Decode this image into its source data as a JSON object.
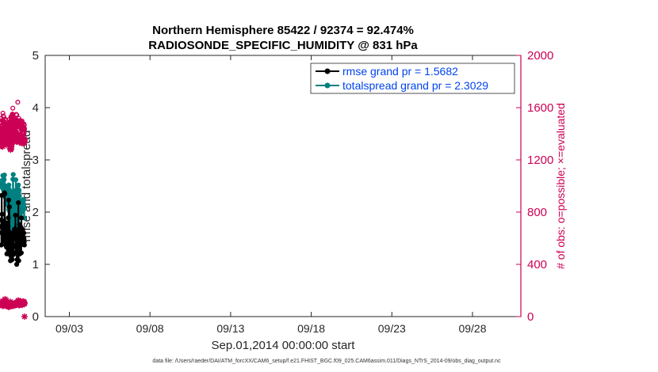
{
  "chart_data": {
    "type": "line",
    "title_line1": "Northern Hemisphere 85422 / 92374 = 92.474%",
    "title_line2": "RADIOSONDE_SPECIFIC_HUMIDITY @ 831 hPa",
    "xlabel": "Sep.01,2014 00:00:00 start",
    "ylabel_left": "rmse and totalspread",
    "ylabel_right": "# of obs: o=possible; ×=evaluated",
    "footnote": "data file: /Users/raeder/DAI/ATM_forcXX/CAM6_setup/f.e21.FHIST_BGC.f09_025.CAM6assim.011/Diags_NTrS_2014-09/obs_diag_output.nc",
    "x_range": [
      1.5,
      31.0
    ],
    "x_ticks": [
      {
        "value": 3,
        "label": "09/03"
      },
      {
        "value": 8,
        "label": "09/08"
      },
      {
        "value": 13,
        "label": "09/13"
      },
      {
        "value": 18,
        "label": "09/18"
      },
      {
        "value": 23,
        "label": "09/23"
      },
      {
        "value": 28,
        "label": "09/28"
      }
    ],
    "y_left_range": [
      0,
      5
    ],
    "y_left_ticks": [
      "0",
      "1",
      "2",
      "3",
      "4",
      "5"
    ],
    "y_right_range": [
      0,
      2000
    ],
    "y_right_ticks": [
      "0",
      "400",
      "800",
      "1200",
      "1600",
      "2000"
    ],
    "colors": {
      "rmse": "#000000",
      "spread": "#008080",
      "obs": "#cc0055",
      "legend_text": "#0044ee"
    },
    "legend": [
      {
        "label": "rmse grand pr = 1.5682"
      },
      {
        "label": "totalspread grand pr = 2.3029"
      }
    ],
    "series": [
      {
        "name": "rmse",
        "axis": "left",
        "values": [
          1.85,
          1.37,
          1.72,
          2.32,
          1.6,
          1.96,
          1.62,
          1.75,
          1.68,
          1.58,
          1.7,
          1.52,
          1.66,
          1.58,
          1.46,
          1.62,
          1.83,
          1.44,
          2.37,
          1.59,
          2.35,
          1.64,
          1.65,
          1.63,
          1.57,
          1.74,
          1.37,
          1.52,
          1.66,
          1.33,
          1.79,
          1.2,
          1.62,
          1.48,
          1.57,
          1.65,
          1.64,
          1.68,
          1.73,
          1.89,
          1.28,
          2.23,
          1.56,
          1.6,
          1.62,
          2.1,
          1.55,
          1.2,
          1.47,
          1.56,
          1.18,
          1.07,
          1.6,
          1.08,
          1.37,
          1.15,
          1.55,
          1.15,
          1.24,
          1.47,
          1.09,
          1.58,
          1.19,
          1.32,
          1.48,
          1.38,
          1.49,
          1.47,
          1.19,
          1.6,
          1.56,
          1.49,
          1.67,
          1.57,
          1.62,
          1.54,
          1.68,
          1.56,
          1.94,
          1.51,
          1.35,
          1.23,
          1.48,
          1.32,
          1.47,
          1.0,
          1.54,
          1.09,
          1.53,
          1.34,
          1.47,
          1.26,
          1.63,
          1.3,
          2.18,
          1.55,
          1.07,
          1.65,
          1.6,
          1.53,
          1.76,
          1.62,
          1.2,
          1.64,
          1.51,
          1.62,
          1.72,
          1.69,
          1.68,
          1.7,
          1.22,
          1.89,
          1.4,
          1.58,
          1.44,
          1.38,
          1.6,
          1.45,
          1.67,
          1.42,
          1.53,
          1.45,
          1.39,
          1.48,
          1.6,
          1.49,
          1.43,
          1.37
        ]
      },
      {
        "name": "totalspread",
        "axis": "left",
        "values": [
          2.58,
          2.55,
          2.6,
          2.53,
          2.48,
          2.56,
          2.6,
          2.47,
          2.52,
          2.7,
          2.44,
          2.55,
          2.62,
          2.5,
          2.64,
          2.4,
          2.62,
          2.46,
          2.71,
          2.51,
          2.35,
          2.3,
          2.43,
          2.28,
          2.38,
          2.32,
          2.18,
          2.37,
          2.2,
          2.35,
          2.19,
          2.39,
          2.16,
          2.33,
          2.22,
          2.38,
          2.29,
          2.2,
          2.35,
          2.12,
          2.46,
          2.05,
          2.52,
          2.08,
          2.43,
          2.02,
          2.3,
          1.92,
          2.37,
          1.78,
          2.28,
          1.65,
          2.3,
          1.59,
          2.21,
          1.7,
          2.35,
          1.62,
          2.32,
          1.75,
          2.18,
          1.66,
          2.2,
          1.76,
          2.63,
          1.85,
          2.72,
          1.8,
          2.4,
          1.77,
          2.36,
          2.03,
          2.31,
          1.78,
          2.26,
          1.72,
          2.41,
          1.63,
          2.35,
          1.58,
          2.62,
          1.61,
          2.33,
          1.55,
          2.25,
          1.62,
          2.15,
          1.75,
          2.21,
          1.58,
          2.46,
          1.64,
          2.3,
          1.92,
          2.52,
          1.7,
          2.38,
          1.95,
          2.42,
          1.77,
          2.31,
          2.02,
          2.22,
          1.94,
          2.09,
          2.01,
          2.15,
          2.06,
          2.2,
          1.99,
          2.22,
          2.12,
          2.18,
          2.1,
          2.18,
          2.15,
          2.12,
          2.17,
          2.04,
          2.24,
          2.1,
          2.15,
          2.16,
          2.05,
          2.23,
          1.89,
          2.1,
          1.89
        ]
      },
      {
        "name": "obs possible",
        "axis": "right",
        "values": [
          1396,
          1457,
          1518,
          1465,
          1400,
          1462,
          1502,
          1443,
          1418,
          1497,
          1459,
          1497,
          1558,
          1442,
          1486,
          1537,
          1420,
          1491,
          1530,
          1456,
          1472,
          1428,
          1492,
          1463,
          1445,
          1487,
          1446,
          1472,
          1512,
          1420,
          1447,
          1428,
          1456,
          1454,
          1503,
          1428,
          1438,
          1460,
          1466,
          1456,
          1459,
          1464,
          1465,
          1429,
          1448,
          1463,
          1478,
          1452,
          1459,
          1440,
          1480,
          1450,
          1475,
          1468,
          1458,
          1456,
          1471,
          1510,
          1490,
          1465,
          1432,
          1455,
          1488,
          1423,
          1457,
          1463,
          1441,
          1413,
          1490,
          1532,
          1520,
          1502,
          1514,
          1508,
          1490,
          1526,
          1532,
          1522,
          1524,
          1551,
          1543,
          1528,
          1596,
          1536,
          1538,
          1492,
          1510,
          1520,
          1505,
          1490,
          1495,
          1485,
          1455,
          1475,
          1435,
          1449,
          1440,
          1436,
          1485,
          1503,
          1428,
          1448,
          1392,
          1484,
          1503,
          1478,
          1548,
          1508,
          1495,
          1460,
          1544,
          1460,
          1452,
          1484,
          1460,
          1468,
          1495,
          1642,
          1466,
          1478,
          1483,
          1471,
          1496,
          1472,
          1438,
          1518,
          1483,
          1463,
          1466,
          1450,
          1478,
          1490,
          1501,
          1473,
          1450,
          1462,
          1488,
          1494,
          1460,
          1484,
          1472,
          1490,
          1442,
          1431,
          1472,
          1450,
          1429,
          1498,
          1487,
          1413,
          1452,
          1446,
          1478,
          1430,
          1406,
          1401,
          1432,
          1447,
          1408,
          1399,
          1440,
          1475,
          1404,
          1466,
          1430,
          1440
        ]
      },
      {
        "name": "obs evaluated",
        "axis": "right",
        "values": [
          1307,
          1336,
          1364,
          1353,
          1306,
          1351,
          1410,
          1344,
          1350,
          1399,
          1302,
          1358,
          1431,
          1379,
          1330,
          1378,
          1356,
          1437,
          1379,
          1356,
          1370,
          1318,
          1363,
          1375,
          1364,
          1398,
          1337,
          1376,
          1407,
          1356,
          1357,
          1346,
          1336,
          1347,
          1378,
          1314,
          1331,
          1345,
          1348,
          1330,
          1343,
          1356,
          1353,
          1330,
          1356,
          1379,
          1370,
          1344,
          1347,
          1364,
          1393,
          1380,
          1378,
          1358,
          1352,
          1369,
          1366,
          1384,
          1391,
          1372,
          1338,
          1353,
          1393,
          1321,
          1311,
          1290,
          1278,
          1284,
          1307,
          1303,
          1310,
          1285,
          1299,
          1330,
          1378,
          1320,
          1360,
          1389,
          1348,
          1433,
          1405,
          1396,
          1383,
          1436,
          1452,
          1387,
          1393,
          1417,
          1392,
          1383,
          1403,
          1401,
          1406,
          1380,
          1376,
          1355,
          1418,
          1395,
          1355,
          1411,
          1381,
          1380,
          1360,
          1369,
          1406,
          1366,
          1377,
          1341,
          1344,
          1378,
          1396,
          1386,
          1341,
          1397,
          1380,
          1358,
          1395,
          1352,
          1378,
          1380,
          1393,
          1375,
          1371,
          1367,
          1365,
          1387,
          1373,
          1381,
          1335,
          1356,
          1360,
          1362,
          1345,
          1367,
          1354,
          1340,
          1370,
          1350,
          1372,
          1355,
          1368,
          1380,
          1343,
          1352,
          1363,
          1345,
          1376,
          1332,
          1327,
          1344,
          1353,
          1338,
          1359,
          1349,
          1346,
          1356,
          1374,
          1337,
          1329,
          1361,
          1344,
          1360,
          1342,
          1331,
          1358,
          1335,
          1351
        ]
      },
      {
        "name": "obs evaluated (lower band)",
        "axis": "right",
        "values": [
          91,
          98,
          111,
          106,
          92,
          109,
          104,
          88,
          83,
          89,
          104,
          119,
          104,
          100,
          99,
          88,
          98,
          106,
          83,
          95,
          100,
          111,
          108,
          94,
          97,
          91,
          88,
          102,
          134,
          115,
          90,
          88,
          106,
          97,
          100,
          111,
          125,
          96,
          88,
          85,
          103,
          94,
          92,
          81,
          87,
          80,
          95,
          90,
          106,
          106,
          87,
          81,
          77,
          79,
          74,
          87,
          90,
          88,
          88,
          78,
          79,
          84,
          82,
          96,
          107,
          114,
          86,
          87,
          84,
          82,
          81,
          81,
          92,
          90,
          92,
          97,
          103,
          101,
          102,
          94,
          98,
          92,
          88,
          81,
          86,
          84,
          96,
          96,
          91,
          92,
          88,
          87,
          87,
          99,
          104,
          95,
          90,
          95,
          98,
          92,
          91,
          95,
          101,
          95,
          97,
          88,
          92,
          95,
          95,
          96,
          94,
          101,
          92,
          99,
          94,
          104,
          102,
          95,
          113,
          95,
          110,
          106,
          124,
          113,
          106,
          93,
          118,
          110,
          89,
          97,
          104,
          95,
          88,
          100,
          115,
          107,
          101,
          106,
          91,
          103,
          114,
          101,
          110,
          106,
          116,
          100,
          107,
          104,
          96,
          101,
          93,
          91,
          90,
          94,
          95,
          110,
          100,
          115,
          104,
          98,
          116,
          110,
          108,
          112,
          110,
          107,
          97,
          103,
          0
        ]
      }
    ]
  }
}
